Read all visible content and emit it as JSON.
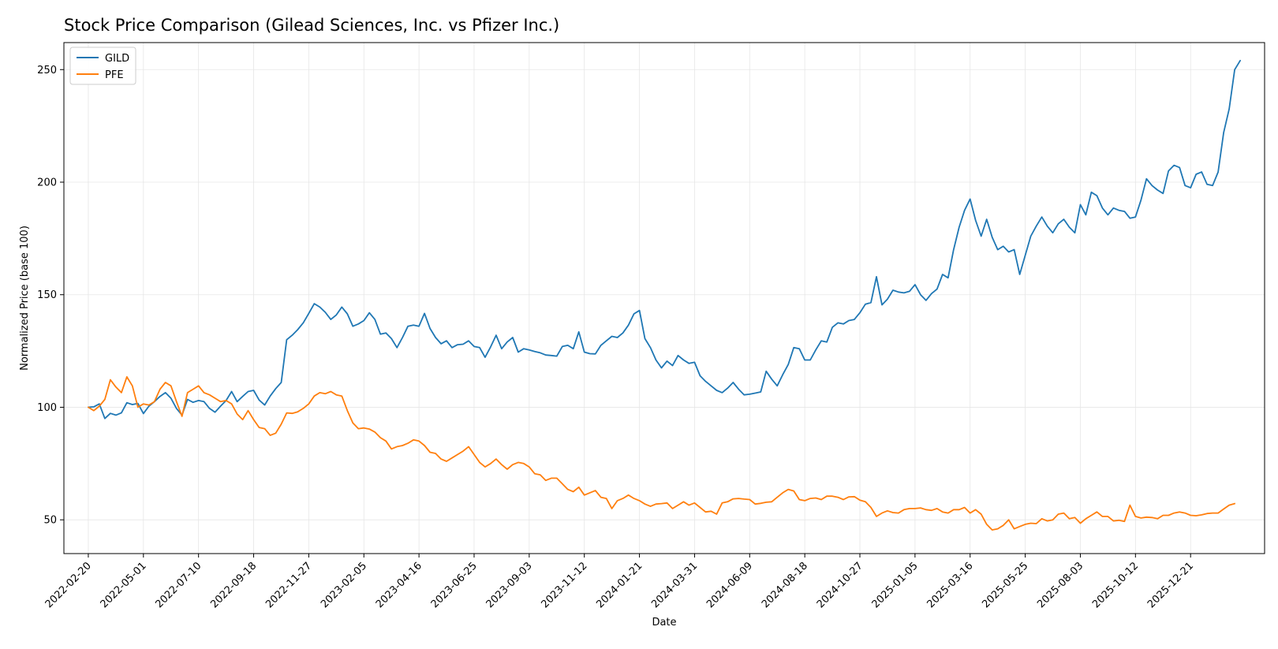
{
  "chart_data": {
    "type": "line",
    "title": "Stock Price Comparison (Gilead Sciences, Inc. vs Pfizer Inc.)",
    "xlabel": "Date",
    "ylabel": "Normalized Price (base 100)",
    "ylim": [
      35,
      262
    ],
    "yticks": [
      50,
      100,
      150,
      200,
      250
    ],
    "xlim": [
      "2022-01-20",
      "2026-03-25"
    ],
    "xticks": [
      "2022-02-20",
      "2022-05-01",
      "2022-07-10",
      "2022-09-18",
      "2022-11-27",
      "2023-02-05",
      "2023-04-16",
      "2023-06-25",
      "2023-09-03",
      "2023-11-12",
      "2024-01-21",
      "2024-03-31",
      "2024-06-09",
      "2024-08-18",
      "2024-10-27",
      "2025-01-05",
      "2025-03-16",
      "2025-05-25",
      "2025-08-03",
      "2025-10-12",
      "2025-12-21"
    ],
    "grid": true,
    "legend_position": "top-left",
    "start": "2022-02-20",
    "step_days": 7,
    "series": [
      {
        "name": "GILD",
        "color": "#1f77b4",
        "values": [
          100.0,
          100.2,
          101.5,
          95.0,
          97.3,
          96.5,
          97.5,
          102.0,
          101.2,
          101.7,
          97.2,
          100.5,
          102.5,
          104.8,
          106.5,
          104.0,
          99.5,
          96.5,
          103.5,
          102.2,
          103.0,
          102.5,
          99.5,
          97.8,
          100.5,
          103.0,
          107.0,
          102.5,
          104.8,
          107.0,
          107.5,
          103.2,
          101.0,
          105.0,
          108.3,
          111.0,
          130.0,
          132.0,
          134.5,
          137.5,
          141.7,
          146.0,
          144.5,
          142.2,
          139.0,
          141.0,
          144.5,
          141.5,
          136.0,
          137.0,
          138.5,
          142.0,
          139.0,
          132.5,
          133.0,
          130.5,
          126.5,
          131.0,
          136.0,
          136.5,
          136.0,
          141.7,
          135.0,
          131.0,
          128.2,
          129.5,
          126.5,
          127.8,
          128.0,
          129.5,
          127.0,
          126.5,
          122.2,
          126.8,
          132.0,
          126.0,
          129.0,
          131.0,
          124.5,
          126.0,
          125.5,
          124.8,
          124.2,
          123.2,
          123.0,
          122.7,
          127.0,
          127.5,
          126.0,
          133.5,
          124.5,
          123.8,
          123.7,
          127.5,
          129.5,
          131.5,
          131.0,
          133.0,
          136.5,
          141.5,
          143.0,
          130.5,
          126.5,
          121.0,
          117.5,
          120.5,
          118.5,
          123.0,
          121.0,
          119.5,
          120.0,
          114.0,
          111.5,
          109.5,
          107.5,
          106.5,
          108.5,
          111.0,
          108.0,
          105.5,
          105.8,
          106.3,
          106.8,
          116.0,
          112.5,
          109.5,
          114.5,
          119.0,
          126.5,
          126.0,
          121.0,
          121.0,
          125.5,
          129.5,
          129.0,
          135.5,
          137.5,
          137.0,
          138.5,
          139.0,
          142.0,
          145.8,
          146.5,
          158.0,
          145.5,
          148.0,
          152.0,
          151.2,
          150.8,
          151.5,
          154.5,
          150.0,
          147.5,
          150.5,
          152.5,
          159.0,
          157.5,
          170.0,
          180.0,
          187.5,
          192.5,
          183.0,
          176.0,
          183.5,
          175.5,
          170.0,
          171.5,
          169.0,
          170.0,
          159.0,
          167.5,
          176.0,
          180.5,
          184.5,
          180.5,
          177.5,
          181.5,
          183.5,
          180.0,
          177.5,
          190.0,
          185.5,
          195.5,
          194.0,
          188.5,
          185.5,
          188.5,
          187.5,
          187.0,
          184.0,
          184.5,
          192.0,
          201.5,
          198.5,
          196.5,
          195.0,
          205.0,
          207.5,
          206.5,
          198.5,
          197.5,
          203.5,
          204.5,
          199.0,
          198.5,
          204.5,
          222.0,
          232.5,
          250.0,
          254.0
        ]
      },
      {
        "name": "PFE",
        "color": "#ff7f0e",
        "values": [
          100.0,
          98.5,
          100.5,
          103.5,
          112.2,
          109.0,
          106.5,
          113.5,
          109.5,
          100.0,
          101.5,
          101.0,
          102.5,
          108.0,
          111.0,
          109.5,
          102.5,
          96.0,
          106.5,
          108.0,
          109.5,
          106.5,
          105.5,
          104.0,
          102.5,
          103.0,
          101.5,
          97.0,
          94.5,
          98.5,
          94.5,
          91.0,
          90.5,
          87.5,
          88.5,
          92.5,
          97.5,
          97.3,
          98.0,
          99.5,
          101.5,
          105.0,
          106.5,
          106.0,
          107.0,
          105.5,
          105.0,
          98.5,
          93.0,
          90.5,
          90.8,
          90.3,
          89.0,
          86.5,
          85.0,
          81.5,
          82.5,
          83.0,
          84.0,
          85.5,
          85.0,
          83.0,
          80.0,
          79.5,
          77.0,
          76.0,
          77.5,
          79.0,
          80.5,
          82.5,
          79.0,
          75.5,
          73.5,
          75.0,
          77.0,
          74.5,
          72.5,
          74.5,
          75.5,
          75.0,
          73.5,
          70.5,
          70.0,
          67.5,
          68.5,
          68.5,
          66.0,
          63.5,
          62.5,
          64.5,
          61.0,
          62.0,
          63.0,
          60.0,
          59.5,
          55.0,
          58.5,
          59.5,
          61.0,
          59.5,
          58.5,
          57.0,
          56.0,
          57.0,
          57.2,
          57.5,
          55.0,
          56.5,
          58.0,
          56.5,
          57.5,
          55.5,
          53.5,
          53.8,
          52.5,
          57.5,
          58.0,
          59.3,
          59.5,
          59.2,
          59.0,
          57.0,
          57.3,
          57.8,
          58.0,
          60.0,
          62.0,
          63.5,
          62.8,
          59.0,
          58.5,
          59.5,
          59.7,
          59.0,
          60.5,
          60.5,
          60.0,
          59.0,
          60.2,
          60.3,
          58.7,
          58.0,
          55.5,
          51.5,
          53.0,
          54.0,
          53.2,
          53.0,
          54.5,
          55.0,
          55.0,
          55.3,
          54.5,
          54.2,
          55.0,
          53.5,
          53.0,
          54.5,
          54.5,
          55.5,
          53.0,
          54.5,
          52.5,
          48.0,
          45.5,
          46.0,
          47.5,
          50.0,
          46.0,
          47.0,
          48.0,
          48.5,
          48.3,
          50.5,
          49.5,
          50.0,
          52.5,
          53.0,
          50.5,
          51.0,
          48.5,
          50.5,
          52.0,
          53.5,
          51.5,
          51.5,
          49.5,
          49.8,
          49.3,
          56.5,
          51.5,
          50.8,
          51.2,
          51.0,
          50.5,
          52.0,
          52.0,
          53.0,
          53.5,
          53.0,
          52.0,
          51.8,
          52.2,
          52.8,
          53.0,
          53.0,
          54.8,
          56.5,
          57.2
        ]
      }
    ]
  }
}
